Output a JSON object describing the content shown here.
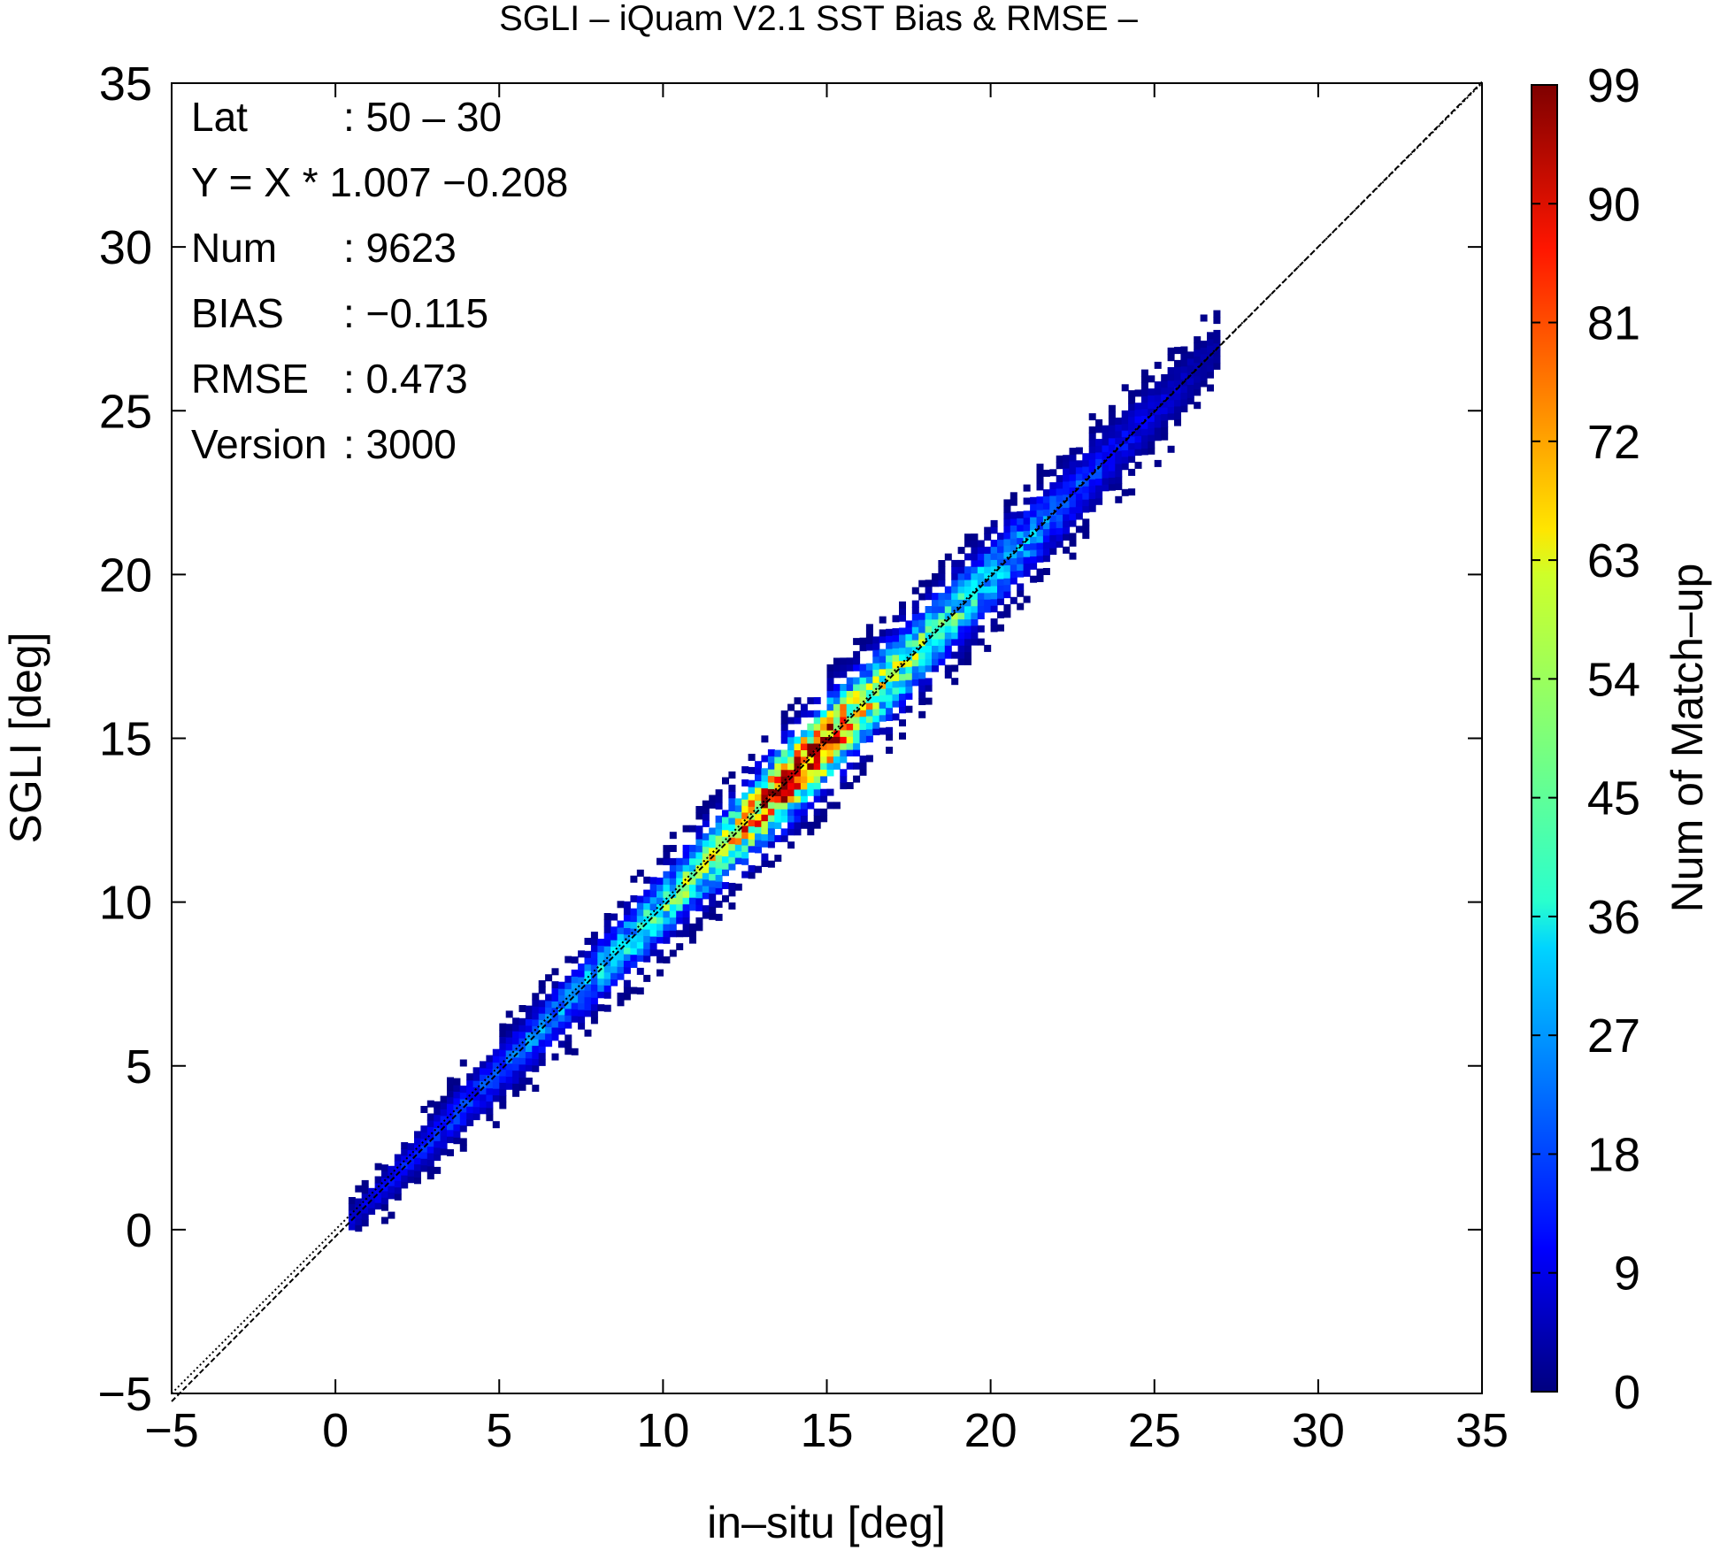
{
  "chart_data": {
    "type": "heatmap",
    "title": "SGLI – iQuam V2.1 SST Bias & RMSE  –",
    "xlabel": "in–situ [deg]",
    "ylabel": "SGLI [deg]",
    "xlim": [
      -5,
      35
    ],
    "ylim": [
      -5,
      35
    ],
    "xticks": [
      "−5",
      "0",
      "5",
      "10",
      "15",
      "20",
      "25",
      "30",
      "35"
    ],
    "xtick_values": [
      -5,
      0,
      5,
      10,
      15,
      20,
      25,
      30,
      35
    ],
    "yticks": [
      "−5",
      "0",
      "5",
      "10",
      "15",
      "20",
      "25",
      "30",
      "35"
    ],
    "ytick_values": [
      -5,
      0,
      5,
      10,
      15,
      20,
      25,
      30,
      35
    ],
    "grid": false,
    "colorbar": {
      "label": "Num of Match–up",
      "min": 0,
      "max": 99,
      "ticks": [
        "0",
        "9",
        "18",
        "27",
        "36",
        "45",
        "54",
        "63",
        "72",
        "81",
        "90",
        "99"
      ],
      "tick_values": [
        0,
        9,
        18,
        27,
        36,
        45,
        54,
        63,
        72,
        81,
        90,
        99
      ],
      "colormap": "jet"
    },
    "stats": [
      {
        "label": "Lat",
        "sep": ":",
        "value": "50 – 30"
      },
      {
        "label": "Y = X * 1.007 −0.208",
        "sep": "",
        "value": ""
      },
      {
        "label": "Num",
        "sep": ":",
        "value": "9623"
      },
      {
        "label": "BIAS",
        "sep": ":",
        "value": "−0.115"
      },
      {
        "label": "RMSE",
        "sep": ":",
        "value": "0.473"
      },
      {
        "label": "Version",
        "sep": ":",
        "value": "3000"
      }
    ],
    "reference_lines": [
      {
        "name": "1:1",
        "slope": 1.0,
        "intercept": 0.0,
        "style": "dotted"
      },
      {
        "name": "fit",
        "slope": 1.007,
        "intercept": -0.208,
        "style": "dashed"
      }
    ],
    "density_profile": {
      "x": [
        0.5,
        2,
        4,
        6,
        8,
        10,
        11,
        12,
        13.5,
        15,
        16,
        18,
        20,
        22,
        24,
        26,
        27
      ],
      "peak_count": [
        8,
        12,
        16,
        22,
        30,
        42,
        50,
        58,
        88,
        95,
        60,
        45,
        35,
        22,
        12,
        6,
        3
      ],
      "spread": [
        0.25,
        0.35,
        0.45,
        0.5,
        0.55,
        0.6,
        0.6,
        0.65,
        0.7,
        0.7,
        0.7,
        0.65,
        0.65,
        0.6,
        0.55,
        0.5,
        0.4
      ]
    }
  }
}
